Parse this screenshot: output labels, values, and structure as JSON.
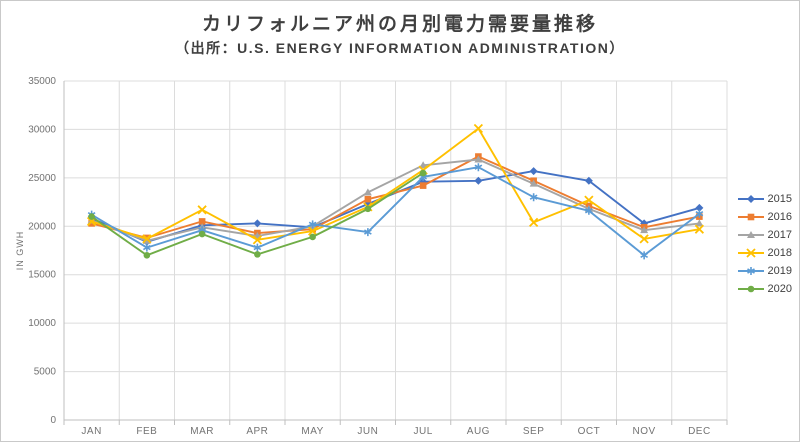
{
  "chart": {
    "title": "カリフォルニア州の月別電力需要量推移",
    "subtitle": "（出所：U.S. ENERGY INFORMATION ADMINISTRATION）"
  },
  "chart_data": {
    "type": "line",
    "title": "カリフォルニア州の月別電力需要量推移",
    "subtitle": "（出所：U.S. ENERGY INFORMATION ADMINISTRATION）",
    "xlabel": "",
    "ylabel": "IN GWH",
    "ylim": [
      0,
      35000
    ],
    "yticks": [
      0,
      5000,
      10000,
      15000,
      20000,
      25000,
      30000,
      35000
    ],
    "grid": true,
    "legend_position": "right",
    "categories": [
      "JAN",
      "FEB",
      "MAR",
      "APR",
      "MAY",
      "JUN",
      "JUL",
      "AUG",
      "SEP",
      "OCT",
      "NOV",
      "DEC"
    ],
    "series": [
      {
        "name": "2015",
        "color": "#4472C4",
        "marker": "diamond",
        "values": [
          20800,
          18400,
          20100,
          20300,
          19900,
          22300,
          24600,
          24700,
          25700,
          24700,
          20300,
          21900
        ]
      },
      {
        "name": "2016",
        "color": "#ED7D31",
        "marker": "square",
        "values": [
          20300,
          18800,
          20500,
          19300,
          19700,
          22800,
          24200,
          27200,
          24700,
          22100,
          19900,
          21000
        ]
      },
      {
        "name": "2017",
        "color": "#A5A5A5",
        "marker": "triangle",
        "values": [
          20600,
          18500,
          19900,
          19000,
          20000,
          23500,
          26300,
          26900,
          24400,
          21800,
          19600,
          20300
        ]
      },
      {
        "name": "2018",
        "color": "#FFC000",
        "marker": "x",
        "values": [
          20500,
          18700,
          21700,
          18600,
          19500,
          22000,
          25800,
          30100,
          20400,
          22700,
          18700,
          19700
        ]
      },
      {
        "name": "2019",
        "color": "#5B9BD5",
        "marker": "asterisk",
        "values": [
          21200,
          17800,
          19600,
          17800,
          20200,
          19400,
          25100,
          26100,
          23000,
          21600,
          17000,
          21300
        ]
      },
      {
        "name": "2020",
        "color": "#70AD47",
        "marker": "circle",
        "values": [
          21000,
          17000,
          19200,
          17100,
          18900,
          21800,
          25500,
          null,
          null,
          null,
          null,
          null
        ]
      }
    ]
  },
  "style": {
    "gridline_color": "#dcdcdc",
    "axis_color": "#bfbfbf"
  }
}
